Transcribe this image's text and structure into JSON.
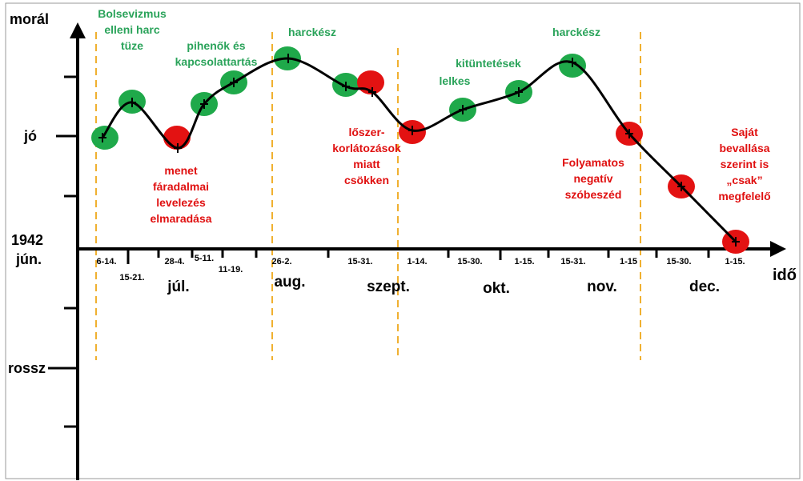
{
  "y_axis": {
    "title": "morál",
    "labels": [
      "jó",
      "rossz"
    ]
  },
  "x_axis": {
    "title": "idő",
    "start": [
      "1942",
      "jún."
    ],
    "months": [
      "júl.",
      "aug.",
      "szept.",
      "okt.",
      "nov.",
      "dec."
    ],
    "periods": [
      "6-14.",
      "15-21.",
      "28-4.",
      "5-11.",
      "11-19.",
      "26-2.",
      "15-31.",
      "1-14.",
      "15-30.",
      "1-15.",
      "15-31.",
      "1-15",
      "15-30.",
      "1-15."
    ]
  },
  "annotations": [
    {
      "tone": "positive",
      "lines": [
        "Bolsevizmus",
        "elleni harc",
        "tüze"
      ]
    },
    {
      "tone": "positive",
      "lines": [
        "pihenők és",
        "kapcsolattartás"
      ]
    },
    {
      "tone": "positive",
      "lines": [
        "harckész"
      ]
    },
    {
      "tone": "positive",
      "lines": [
        "kitüntetések",
        "lelkes"
      ]
    },
    {
      "tone": "positive",
      "lines": [
        "harckész"
      ]
    },
    {
      "tone": "negative",
      "lines": [
        "menet",
        "fáradalmai",
        "levelezés",
        "elmaradása"
      ]
    },
    {
      "tone": "negative",
      "lines": [
        "lőszer-",
        "korlátozások",
        "miatt",
        "csökken"
      ]
    },
    {
      "tone": "negative",
      "lines": [
        "Folyamatos",
        "negatív",
        "szóbeszéd"
      ]
    },
    {
      "tone": "negative",
      "lines": [
        "Saját",
        "bevallása",
        "szerint is",
        "„csak”",
        "megfelelő"
      ]
    }
  ]
}
